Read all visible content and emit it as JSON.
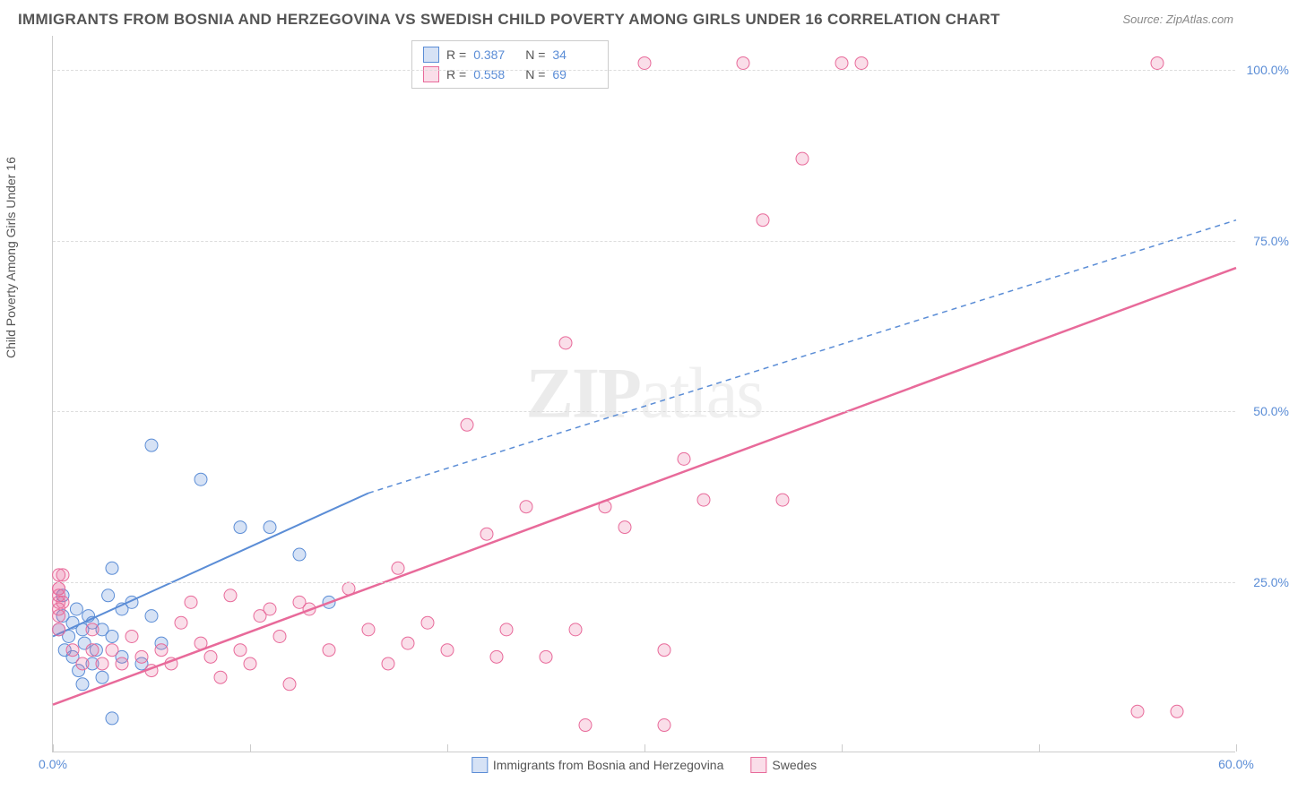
{
  "title": "IMMIGRANTS FROM BOSNIA AND HERZEGOVINA VS SWEDISH CHILD POVERTY AMONG GIRLS UNDER 16 CORRELATION CHART",
  "source": "Source: ZipAtlas.com",
  "y_axis_label": "Child Poverty Among Girls Under 16",
  "watermark_a": "ZIP",
  "watermark_b": "atlas",
  "chart": {
    "type": "scatter",
    "xlim": [
      0,
      60
    ],
    "ylim": [
      0,
      105
    ],
    "x_ticks": [
      0,
      10,
      20,
      30,
      40,
      50,
      60
    ],
    "x_tick_labels": [
      "0.0%",
      "",
      "",
      "",
      "",
      "",
      "60.0%"
    ],
    "y_ticks": [
      25,
      50,
      75,
      100
    ],
    "y_tick_labels": [
      "25.0%",
      "50.0%",
      "75.0%",
      "100.0%"
    ],
    "background_color": "#ffffff",
    "grid_color": "#dddddd",
    "series": [
      {
        "name": "Immigrants from Bosnia and Herzegovina",
        "color": "#5b8dd6",
        "fill": "rgba(91,141,214,0.25)",
        "stroke": "#5b8dd6",
        "marker_radius": 7,
        "R": "0.387",
        "N": "34",
        "regression": {
          "x1": 0,
          "y1": 17,
          "x2": 16,
          "y2": 38,
          "dash_extend_x2": 60,
          "dash_extend_y2": 78,
          "stroke_width": 2
        },
        "points": [
          [
            0.3,
            18
          ],
          [
            0.5,
            20
          ],
          [
            0.6,
            15
          ],
          [
            0.8,
            17
          ],
          [
            1.0,
            19
          ],
          [
            1.0,
            14
          ],
          [
            1.2,
            21
          ],
          [
            1.3,
            12
          ],
          [
            1.5,
            18
          ],
          [
            1.6,
            16
          ],
          [
            1.8,
            20
          ],
          [
            2.0,
            13
          ],
          [
            2.0,
            19
          ],
          [
            2.2,
            15
          ],
          [
            2.5,
            18
          ],
          [
            2.5,
            11
          ],
          [
            2.8,
            23
          ],
          [
            3.0,
            17
          ],
          [
            3.0,
            27
          ],
          [
            3.5,
            14
          ],
          [
            3.5,
            21
          ],
          [
            4.0,
            22
          ],
          [
            4.5,
            13
          ],
          [
            5.0,
            20
          ],
          [
            5.0,
            45
          ],
          [
            5.5,
            16
          ],
          [
            3.0,
            5
          ],
          [
            7.5,
            40
          ],
          [
            9.5,
            33
          ],
          [
            11.0,
            33
          ],
          [
            12.5,
            29
          ],
          [
            14.0,
            22
          ],
          [
            0.5,
            23
          ],
          [
            1.5,
            10
          ]
        ]
      },
      {
        "name": "Swedes",
        "color": "#e86a9a",
        "fill": "rgba(232,106,154,0.22)",
        "stroke": "#e86a9a",
        "marker_radius": 7,
        "R": "0.558",
        "N": "69",
        "regression": {
          "x1": 0,
          "y1": 7,
          "x2": 60,
          "y2": 71,
          "stroke_width": 2.5
        },
        "points": [
          [
            0.3,
            24
          ],
          [
            0.5,
            22
          ],
          [
            0.5,
            26
          ],
          [
            1.0,
            15
          ],
          [
            1.5,
            13
          ],
          [
            2.0,
            15
          ],
          [
            2.0,
            18
          ],
          [
            2.5,
            13
          ],
          [
            3.0,
            15
          ],
          [
            3.5,
            13
          ],
          [
            4.0,
            17
          ],
          [
            4.5,
            14
          ],
          [
            5.0,
            12
          ],
          [
            5.5,
            15
          ],
          [
            6.0,
            13
          ],
          [
            6.5,
            19
          ],
          [
            7.0,
            22
          ],
          [
            7.5,
            16
          ],
          [
            8.0,
            14
          ],
          [
            8.5,
            11
          ],
          [
            9.0,
            23
          ],
          [
            9.5,
            15
          ],
          [
            10.0,
            13
          ],
          [
            10.5,
            20
          ],
          [
            11.0,
            21
          ],
          [
            11.5,
            17
          ],
          [
            12.0,
            10
          ],
          [
            12.5,
            22
          ],
          [
            13.0,
            21
          ],
          [
            14.0,
            15
          ],
          [
            15.0,
            24
          ],
          [
            16.0,
            18
          ],
          [
            17.0,
            13
          ],
          [
            17.5,
            27
          ],
          [
            18.0,
            16
          ],
          [
            19.0,
            19
          ],
          [
            20.0,
            15
          ],
          [
            21.0,
            48
          ],
          [
            22.0,
            32
          ],
          [
            22.5,
            14
          ],
          [
            23.0,
            18
          ],
          [
            24.0,
            36
          ],
          [
            25.0,
            14
          ],
          [
            26.0,
            60
          ],
          [
            26.5,
            18
          ],
          [
            27.0,
            4
          ],
          [
            28.0,
            36
          ],
          [
            29.0,
            33
          ],
          [
            30.0,
            101
          ],
          [
            31.0,
            15
          ],
          [
            31.0,
            4
          ],
          [
            32.0,
            43
          ],
          [
            33.0,
            37
          ],
          [
            35.0,
            101
          ],
          [
            36.0,
            78
          ],
          [
            37.0,
            37
          ],
          [
            38.0,
            87
          ],
          [
            40.0,
            101
          ],
          [
            41.0,
            101
          ],
          [
            55.0,
            6
          ],
          [
            56.0,
            101
          ],
          [
            57.0,
            6
          ],
          [
            0.3,
            18
          ],
          [
            0.3,
            20
          ],
          [
            0.3,
            21
          ],
          [
            0.3,
            22
          ],
          [
            0.3,
            23
          ],
          [
            0.3,
            24
          ],
          [
            0.3,
            26
          ]
        ]
      }
    ]
  },
  "stats_labels": {
    "R": "R =",
    "N": "N ="
  },
  "legend_labels": [
    "Immigrants from Bosnia and Herzegovina",
    "Swedes"
  ]
}
